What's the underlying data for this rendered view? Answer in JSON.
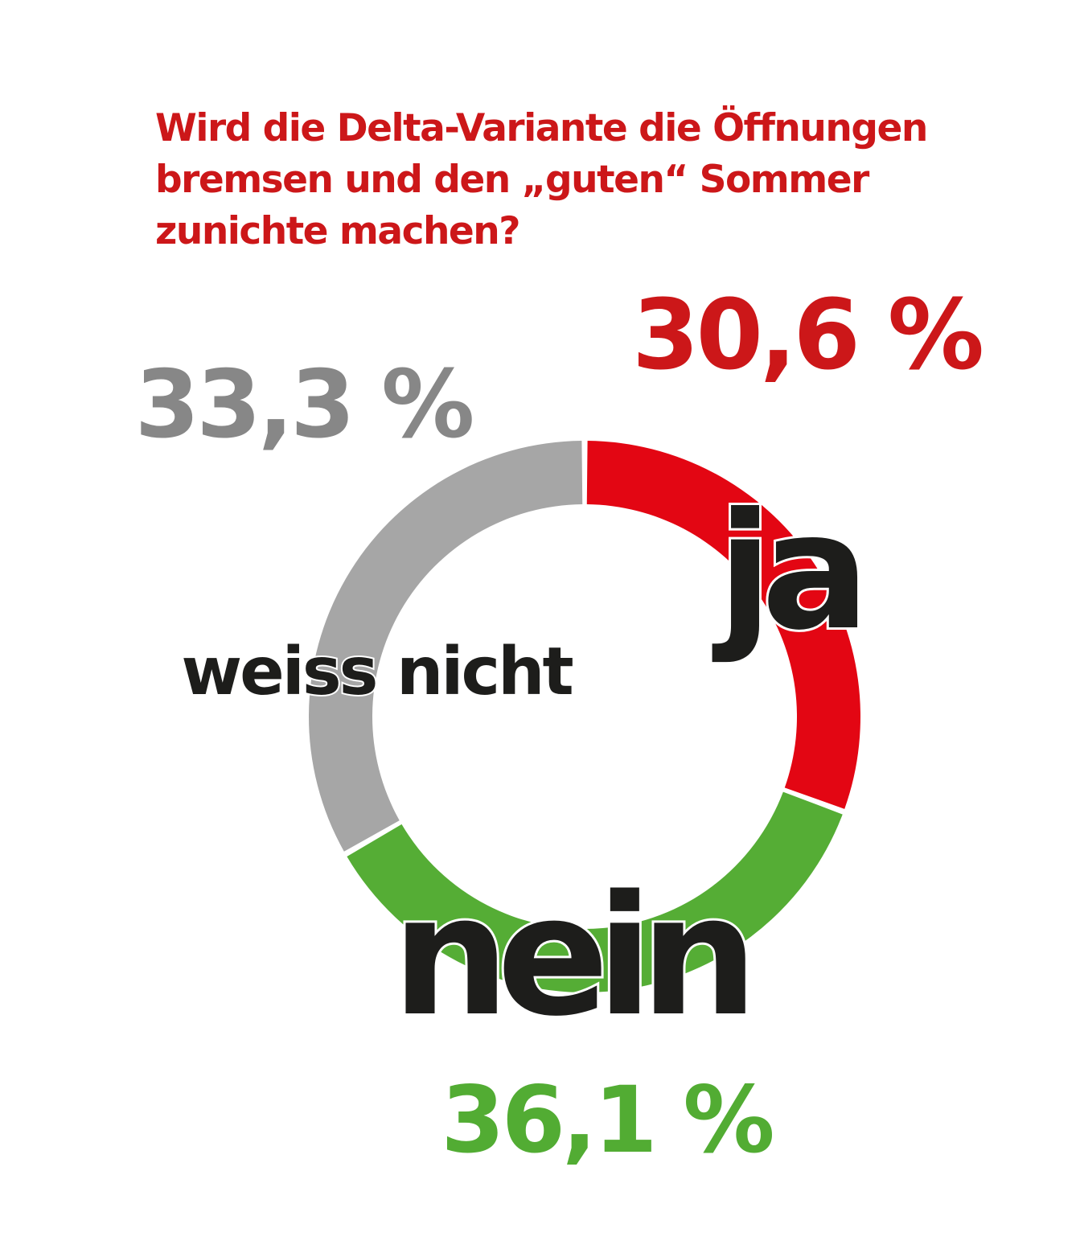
{
  "chart_data": {
    "type": "pie",
    "variant": "donut",
    "title_lines": [
      "Wird die Delta-Variante die Öffnungen",
      "bremsen und den „guten“ Sommer",
      "zunichte machen?"
    ],
    "slices": [
      {
        "label": "ja",
        "value": 30.6,
        "value_label": "30,6 %",
        "color": "#e30613",
        "label_color": "#cc1719"
      },
      {
        "label": "nein",
        "value": 36.1,
        "value_label": "36,1 %",
        "color": "#55ad35",
        "label_color": "#52ac33"
      },
      {
        "label": "weiss nicht",
        "value": 33.3,
        "value_label": "33,3 %",
        "color": "#a6a6a6",
        "label_color": "#878787"
      }
    ],
    "start_angle": "12 o'clock",
    "direction": "clockwise"
  }
}
